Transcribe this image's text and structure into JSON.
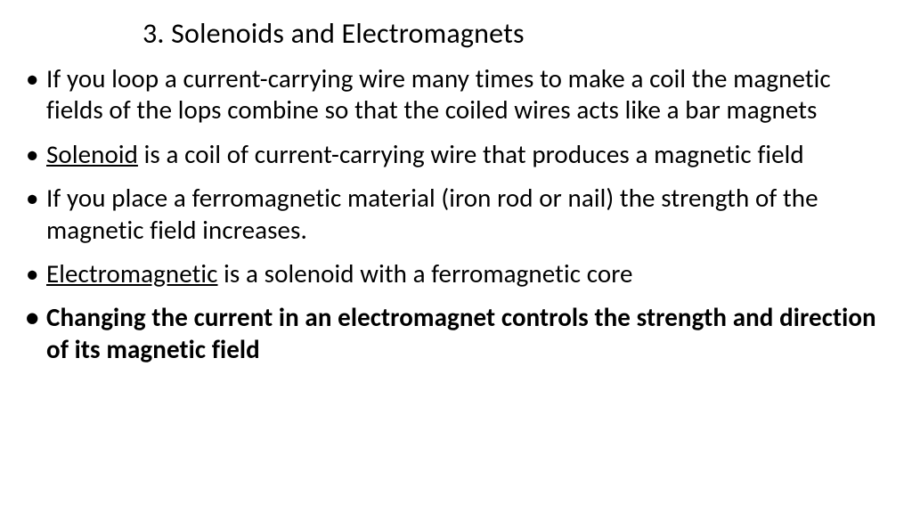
{
  "slide": {
    "title": "3.  Solenoids and Electromagnets",
    "bullets": [
      {
        "segments": [
          {
            "text": "If you loop a current-carrying wire many times to make a coil the magnetic fields of the lops combine so that the coiled wires acts like a bar magnets"
          }
        ],
        "bold": false
      },
      {
        "segments": [
          {
            "text": "Solenoid",
            "underline": true
          },
          {
            "text": " is a coil of current-carrying wire that produces a magnetic field"
          }
        ],
        "bold": false
      },
      {
        "segments": [
          {
            "text": "If you place a ferromagnetic material (iron rod or nail) the strength of the magnetic field increases."
          }
        ],
        "bold": false
      },
      {
        "segments": [
          {
            "text": "Electromagnetic",
            "underline": true
          },
          {
            "text": " is a solenoid with a ferromagnetic core"
          }
        ],
        "bold": false
      },
      {
        "segments": [
          {
            "text": "Changing the current in an electromagnet controls the strength and direction of its magnetic field"
          }
        ],
        "bold": true
      }
    ]
  },
  "style": {
    "background_color": "#ffffff",
    "text_color": "#000000",
    "title_fontsize": 32,
    "body_fontsize": 29,
    "font_family": "Calibri"
  }
}
